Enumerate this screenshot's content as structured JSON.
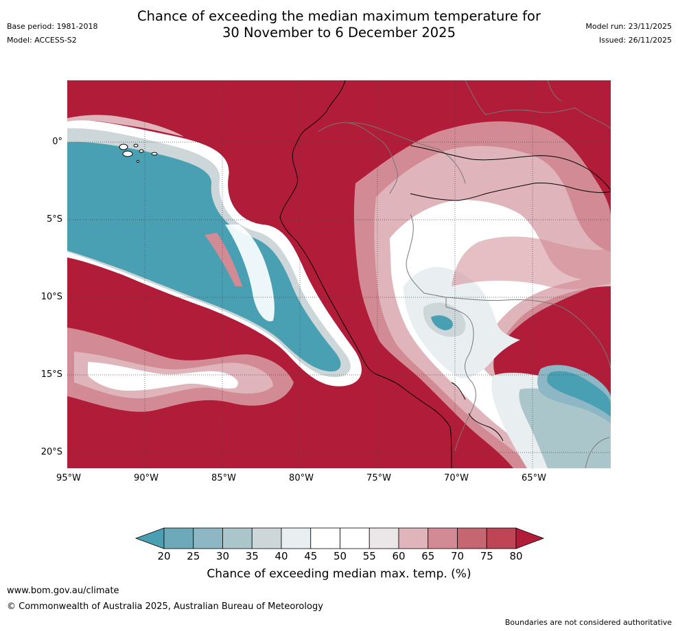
{
  "title": {
    "line1": "Chance of exceeding the median maximum temperature for",
    "line2": "30 November to 6 December 2025"
  },
  "meta": {
    "base_period": "Base period: 1981-2018",
    "model": "Model: ACCESS-S2",
    "model_run": "Model run: 23/11/2025",
    "issued": "Issued: 26/11/2025"
  },
  "map": {
    "lat_labels": [
      "0°",
      "5°S",
      "10°S",
      "15°S",
      "20°S"
    ],
    "lon_labels": [
      "95°W",
      "90°W",
      "85°W",
      "80°W",
      "75°W",
      "70°W",
      "65°W"
    ]
  },
  "colorbar": {
    "ticks": [
      "20",
      "25",
      "30",
      "35",
      "40",
      "45",
      "50",
      "55",
      "60",
      "65",
      "70",
      "75",
      "80"
    ],
    "colors": [
      "#4aa0b3",
      "#6da9b8",
      "#8db7c4",
      "#abc6ca",
      "#cdd7da",
      "#e9eef0",
      "#ffffff",
      "#ffffff",
      "#ebe6e7",
      "#dfb4ba",
      "#d28b94",
      "#c66671",
      "#bd4555",
      "#b11c38"
    ],
    "label": "Chance of exceeding median max. temp. (%)"
  },
  "footer": {
    "url": "www.bom.gov.au/climate",
    "copyright": "© Commonwealth of Australia 2025, Australian Bureau of Meteorology",
    "disclaimer": "Boundaries are not considered authoritative"
  }
}
